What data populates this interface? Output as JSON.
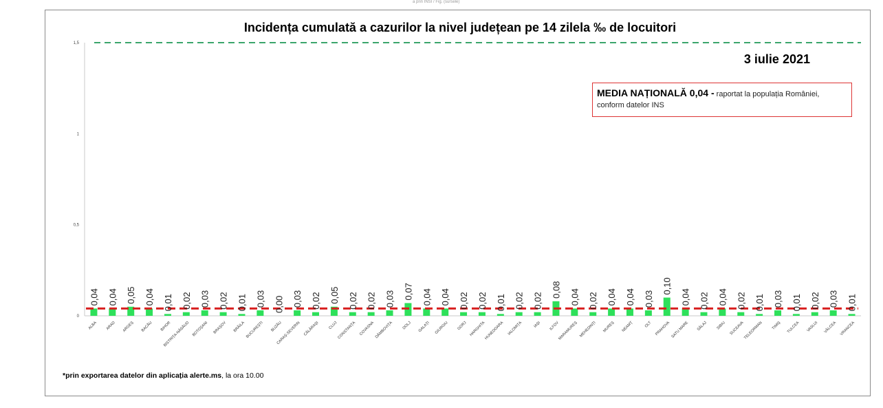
{
  "top_caption": "a prin INSI / Fig. (sursele)",
  "footnote": {
    "prefix": "*prin exportarea datelor din aplicația ",
    "bold": "alerte.ms",
    "suffix": ", la ora 10.00"
  },
  "media_box": {
    "bold_text": "MEDIA NAȚIONALĂ 0,04 -",
    "line1_rest": " raportat la populația României,",
    "line2": "conform datelor INS"
  },
  "colors": {
    "bar": "#2ee05a",
    "national_line": "#d81f1f",
    "reference_line": "#3aa56b",
    "box_border": "#dd3333"
  },
  "chart_data": {
    "type": "bar",
    "title": "Incidența cumulată a cazurilor la nivel județean pe 14 zilela ‰ de locuitori",
    "date_label": "3 iulie 2021",
    "ylim": [
      0,
      1.5
    ],
    "yticks": [
      {
        "value": 0,
        "label": "0"
      },
      {
        "value": 0.5,
        "label": "0,5"
      },
      {
        "value": 1,
        "label": "1"
      },
      {
        "value": 1.5,
        "label": "1,5"
      }
    ],
    "national_average": 0.04,
    "reference_threshold": 1.5,
    "categories": [
      "ALBA",
      "ARAD",
      "ARGEȘ",
      "BACĂU",
      "BIHOR",
      "BISTRIȚA-NĂSĂUD",
      "BOTOȘANI",
      "BRAȘOV",
      "BRĂILA",
      "BUCUREȘTI",
      "BUZĂU",
      "CARAȘ-SEVERIN",
      "CĂLĂRAȘI",
      "CLUJ",
      "CONSTANȚA",
      "COVASNA",
      "DÂMBOVIȚA",
      "DOLJ",
      "GALAȚI",
      "GIURGIU",
      "GORJ",
      "HARGHITA",
      "HUNEDOARA",
      "IALOMIȚA",
      "IAȘI",
      "ILFOV",
      "MARAMUREȘ",
      "MEHEDINȚI",
      "MUREȘ",
      "NEAMȚ",
      "OLT",
      "PRAHOVA",
      "SATU MARE",
      "SĂLAJ",
      "SIBIU",
      "SUCEAVA",
      "TELEORMAN",
      "TIMIȘ",
      "TULCEA",
      "VASLUI",
      "VÂLCEA",
      "VRANCEA"
    ],
    "values": [
      0.04,
      0.04,
      0.05,
      0.04,
      0.01,
      0.02,
      0.03,
      0.02,
      0.01,
      0.03,
      0.0,
      0.03,
      0.02,
      0.05,
      0.02,
      0.02,
      0.03,
      0.07,
      0.04,
      0.04,
      0.02,
      0.02,
      0.01,
      0.02,
      0.02,
      0.08,
      0.04,
      0.02,
      0.04,
      0.04,
      0.03,
      0.1,
      0.04,
      0.02,
      0.04,
      0.02,
      0.01,
      0.03,
      0.01,
      0.02,
      0.03,
      0.01
    ],
    "value_labels": [
      "0,04",
      "0,04",
      "0,05",
      "0,04",
      "0,01",
      "0,02",
      "0,03",
      "0,02",
      "0,01",
      "0,03",
      "0,00",
      "0,03",
      "0,02",
      "0,05",
      "0,02",
      "0,02",
      "0,03",
      "0,07",
      "0,04",
      "0,04",
      "0,02",
      "0,02",
      "0,01",
      "0,02",
      "0,02",
      "0,08",
      "0,04",
      "0,02",
      "0,04",
      "0,04",
      "0,03",
      "0,10",
      "0,04",
      "0,02",
      "0,04",
      "0,02",
      "0,01",
      "0,03",
      "0,01",
      "0,02",
      "0,03",
      "0,01"
    ]
  }
}
